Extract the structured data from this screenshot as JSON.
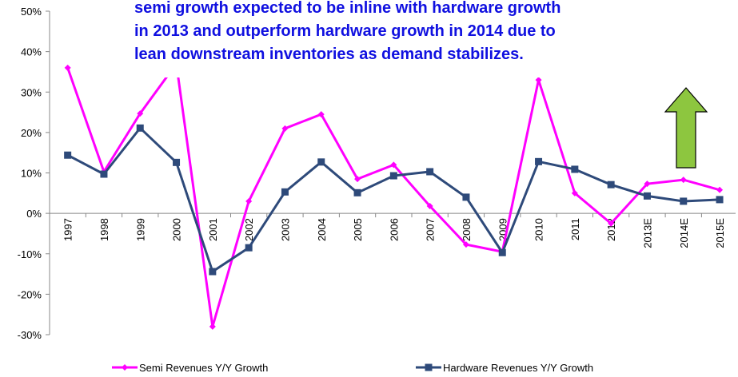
{
  "chart_data": {
    "type": "line",
    "categories": [
      "1997",
      "1998",
      "1999",
      "2000",
      "2001",
      "2002",
      "2003",
      "2004",
      "2005",
      "2006",
      "2007",
      "2008",
      "2009",
      "2010",
      "2011",
      "2012",
      "2013E",
      "2014E",
      "2015E"
    ],
    "series": [
      {
        "name": "Semi Revenues Y/Y Growth",
        "color": "#ff00ff",
        "marker": "diamond",
        "values": [
          36,
          10.3,
          24.7,
          37,
          -28,
          3,
          21,
          24.5,
          8.5,
          12,
          1.8,
          -7.7,
          -9.5,
          33,
          5,
          -2.5,
          7.3,
          8.3,
          5.8
        ]
      },
      {
        "name": "Hardware Revenues Y/Y Growth",
        "color": "#2e4a7a",
        "marker": "square",
        "values": [
          14.4,
          9.7,
          21.1,
          12.6,
          -14.4,
          -8.5,
          5.3,
          12.7,
          5.1,
          9.3,
          10.3,
          4,
          -9.7,
          12.8,
          10.9,
          7.1,
          4.3,
          3,
          3.4
        ]
      }
    ],
    "ylim": [
      -30,
      50
    ],
    "yticks": [
      {
        "value": 50,
        "label": "50%"
      },
      {
        "value": 40,
        "label": "40%"
      },
      {
        "value": 30,
        "label": "30%"
      },
      {
        "value": 20,
        "label": "20%"
      },
      {
        "value": 10,
        "label": "10%"
      },
      {
        "value": 0,
        "label": "0%"
      },
      {
        "value": -10,
        "label": "-10%"
      },
      {
        "value": -20,
        "label": "-20%"
      },
      {
        "value": -30,
        "label": "-30%"
      }
    ],
    "annotation": [
      "semi growth expected to be inline with hardware growth",
      "in 2013 and outperform hardware growth in 2014 due to",
      "lean downstream inventories as demand stabilizes."
    ]
  }
}
